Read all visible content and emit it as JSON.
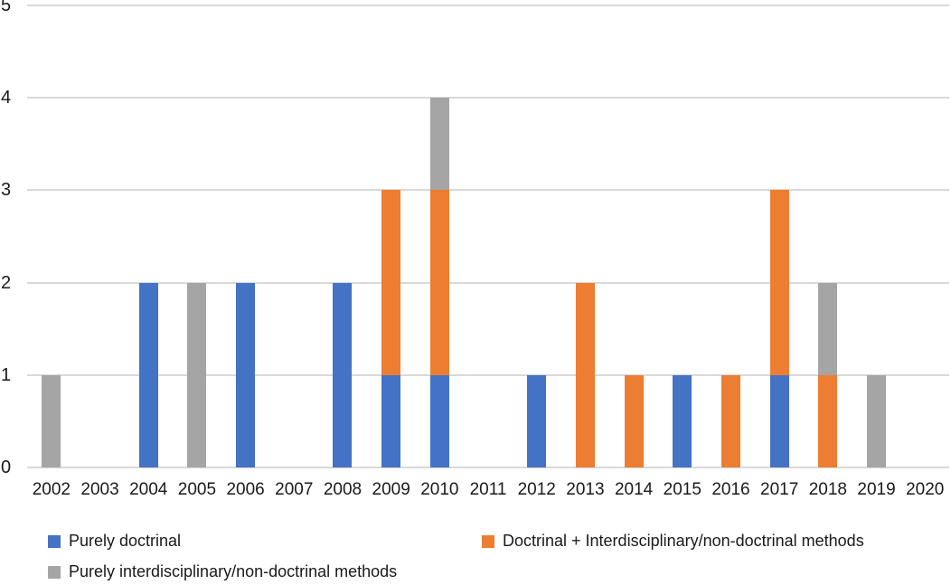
{
  "chart_data": {
    "type": "bar",
    "stacked": true,
    "title": "",
    "xlabel": "",
    "ylabel": "",
    "categories": [
      "2002",
      "2003",
      "2004",
      "2005",
      "2006",
      "2007",
      "2008",
      "2009",
      "2010",
      "2011",
      "2012",
      "2013",
      "2014",
      "2015",
      "2016",
      "2017",
      "2018",
      "2019",
      "2020"
    ],
    "series": [
      {
        "name": "Purely doctrinal",
        "color": "#4472C4",
        "values": [
          0,
          0,
          2,
          0,
          2,
          0,
          2,
          1,
          1,
          0,
          1,
          0,
          0,
          1,
          0,
          1,
          0,
          0,
          0
        ]
      },
      {
        "name": "Doctrinal + Interdisciplinary/non-doctrinal methods",
        "color": "#ED7D31",
        "values": [
          0,
          0,
          0,
          0,
          0,
          0,
          0,
          2,
          2,
          0,
          0,
          2,
          1,
          0,
          1,
          2,
          1,
          0,
          0
        ]
      },
      {
        "name": "Purely interdisciplinary/non-doctrinal methods",
        "color": "#A5A5A5",
        "values": [
          1,
          0,
          0,
          2,
          0,
          0,
          0,
          0,
          1,
          0,
          0,
          0,
          0,
          0,
          0,
          0,
          1,
          1,
          0
        ]
      }
    ],
    "ylim": [
      0,
      5
    ],
    "yticks": [
      0,
      1,
      2,
      3,
      4,
      5
    ],
    "grid": true,
    "grid_color": "#d9d9d9",
    "text_color": "#1a1a1a",
    "background_color": "#ffffff",
    "legend_position": "bottom"
  }
}
